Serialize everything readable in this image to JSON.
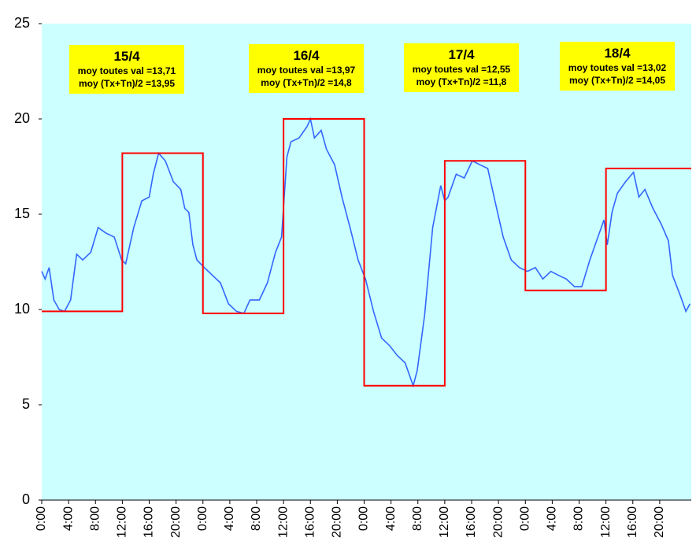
{
  "chart_data": {
    "type": "line",
    "xlim": [
      0,
      96.7
    ],
    "ylim": [
      0,
      25
    ],
    "yticks": [
      0,
      5,
      10,
      15,
      20,
      25
    ],
    "xticks": [
      {
        "value": 0,
        "label": "0:00"
      },
      {
        "value": 4,
        "label": "4:00"
      },
      {
        "value": 8,
        "label": "8:00"
      },
      {
        "value": 12,
        "label": "12:00"
      },
      {
        "value": 16,
        "label": "16:00"
      },
      {
        "value": 20,
        "label": "20:00"
      },
      {
        "value": 24,
        "label": "0:00"
      },
      {
        "value": 28,
        "label": "4:00"
      },
      {
        "value": 32,
        "label": "8:00"
      },
      {
        "value": 36,
        "label": "12:00"
      },
      {
        "value": 40,
        "label": "16:00"
      },
      {
        "value": 44,
        "label": "20:00"
      },
      {
        "value": 48,
        "label": "0:00"
      },
      {
        "value": 52,
        "label": "4:00"
      },
      {
        "value": 56,
        "label": "8:00"
      },
      {
        "value": 60,
        "label": "12:00"
      },
      {
        "value": 64,
        "label": "16:00"
      },
      {
        "value": 68,
        "label": "20:00"
      },
      {
        "value": 72,
        "label": "0:00"
      },
      {
        "value": 76,
        "label": "4:00"
      },
      {
        "value": 80,
        "label": "8:00"
      },
      {
        "value": 84,
        "label": "12:00"
      },
      {
        "value": 88,
        "label": "16:00"
      },
      {
        "value": 92,
        "label": "20:00"
      }
    ],
    "background": "#ccffff",
    "series": [
      {
        "color": "#3366ff",
        "x": [
          0,
          0.5,
          1.1,
          1.8,
          2.6,
          3.4,
          4.3,
          5.2,
          6.1,
          7.3,
          8.4,
          9.6,
          10.8,
          11.9,
          12.5,
          13.7,
          14.9,
          16.0,
          16.6,
          17.4,
          18.4,
          19.6,
          20.7,
          21.3,
          21.9,
          22.5,
          23.1,
          24.2,
          25.4,
          26.6,
          27.8,
          29.0,
          30.1,
          31.0,
          32.4,
          33.6,
          34.8,
          35.7,
          36.5,
          37.1,
          38.3,
          39.5,
          40.0,
          40.6,
          41.6,
          42.4,
          43.6,
          44.7,
          45.9,
          47.1,
          48.2,
          49.4,
          50.6,
          51.8,
          52.9,
          54.1,
          55.3,
          55.9,
          57.0,
          58.2,
          59.4,
          60.0,
          60.5,
          61.7,
          62.9,
          64.1,
          65.2,
          66.4,
          67.6,
          68.7,
          69.9,
          71.1,
          72.3,
          73.5,
          74.6,
          75.8,
          76.9,
          78.1,
          79.3,
          80.4,
          81.6,
          82.8,
          83.7,
          84.2,
          84.9,
          85.7,
          86.9,
          88.1,
          88.9,
          89.8,
          91.0,
          92.2,
          93.3,
          93.9,
          95.1,
          95.9,
          96.5
        ],
        "values": [
          12.0,
          11.6,
          12.2,
          10.5,
          10.0,
          9.9,
          10.5,
          12.9,
          12.6,
          13.0,
          14.3,
          14.0,
          13.8,
          12.6,
          12.4,
          14.3,
          15.7,
          15.9,
          17.1,
          18.2,
          17.8,
          16.7,
          16.3,
          15.3,
          15.1,
          13.4,
          12.6,
          12.2,
          11.8,
          11.4,
          10.3,
          9.9,
          9.8,
          10.5,
          10.5,
          11.4,
          13.0,
          13.8,
          18.0,
          18.8,
          19.0,
          19.6,
          20.0,
          19.0,
          19.4,
          18.4,
          17.6,
          15.9,
          14.3,
          12.6,
          11.6,
          9.9,
          8.5,
          8.1,
          7.6,
          7.2,
          6.0,
          6.8,
          9.7,
          14.3,
          16.5,
          15.7,
          15.9,
          17.1,
          16.9,
          17.8,
          17.6,
          17.4,
          15.5,
          13.8,
          12.6,
          12.2,
          12.0,
          12.2,
          11.6,
          12.0,
          11.8,
          11.6,
          11.2,
          11.2,
          12.6,
          13.8,
          14.7,
          13.4,
          15.1,
          16.1,
          16.7,
          17.2,
          15.9,
          16.3,
          15.3,
          14.5,
          13.6,
          11.8,
          10.7,
          9.9,
          10.3
        ]
      },
      {
        "color": "#ff0000",
        "step": true,
        "x": [
          0,
          12,
          24,
          36,
          48,
          60,
          72,
          84
        ],
        "values": [
          9.9,
          18.2,
          9.8,
          20.0,
          6.0,
          17.8,
          11.0,
          17.4
        ]
      }
    ],
    "annotations": [
      {
        "title": "15/4",
        "lines": [
          "moy toutes val =13,71",
          "moy (Tx+Tn)/2 =13,95"
        ]
      },
      {
        "title": "16/4",
        "lines": [
          "moy toutes val =13,97",
          "moy (Tx+Tn)/2 =14,8"
        ]
      },
      {
        "title": "17/4",
        "lines": [
          "moy toutes val =12,55",
          "moy (Tx+Tn)/2 =11,8"
        ]
      },
      {
        "title": "18/4",
        "lines": [
          "moy toutes val =13,02",
          "moy (Tx+Tn)/2 =14,05"
        ]
      }
    ]
  }
}
